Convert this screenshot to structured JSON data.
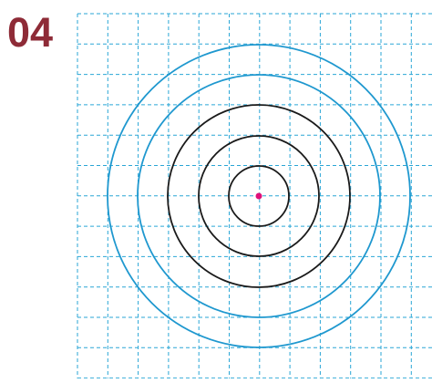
{
  "label": "04"
}
